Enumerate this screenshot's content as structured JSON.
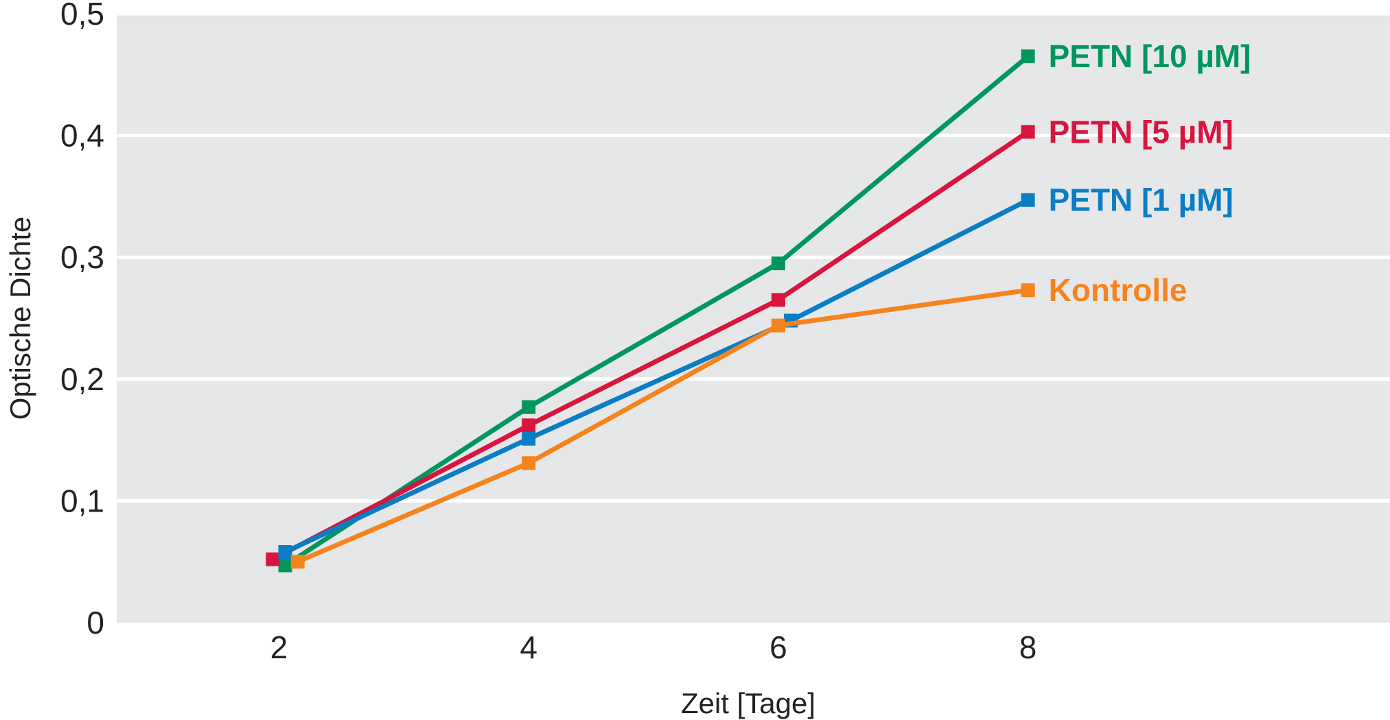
{
  "chart_data": {
    "type": "line",
    "xlabel": "Zeit [Tage]",
    "ylabel": "Optische Dichte",
    "xlim": [
      0.7,
      10.9
    ],
    "ylim": [
      0,
      0.5
    ],
    "x_ticks": [
      2,
      4,
      6,
      8
    ],
    "x_tick_labels": [
      "2",
      "4",
      "6",
      "8"
    ],
    "y_ticks": [
      0,
      0.1,
      0.2,
      0.3,
      0.4,
      0.5
    ],
    "y_tick_labels": [
      "0",
      "0,1",
      "0,2",
      "0,3",
      "0,4",
      "0,5"
    ],
    "grid": "horizontal",
    "legend": "right end of lines",
    "x": [
      2,
      4,
      6,
      8
    ],
    "series": [
      {
        "name": "PETN [10 µM]",
        "color": "#00965e",
        "x": [
          2.05,
          4,
          6,
          8
        ],
        "values": [
          0.047,
          0.177,
          0.295,
          0.465
        ]
      },
      {
        "name": "PETN [5 µM]",
        "color": "#d7153f",
        "x": [
          1.95,
          4,
          6,
          8
        ],
        "values": [
          0.052,
          0.162,
          0.265,
          0.403
        ]
      },
      {
        "name": "PETN [1 µM]",
        "color": "#0a7dc4",
        "x": [
          2.05,
          4,
          6.1,
          8
        ],
        "values": [
          0.058,
          0.151,
          0.248,
          0.347
        ]
      },
      {
        "name": "Kontrolle",
        "color": "#f5841f",
        "x": [
          2.15,
          4,
          6,
          8
        ],
        "values": [
          0.05,
          0.131,
          0.244,
          0.273
        ]
      }
    ]
  }
}
